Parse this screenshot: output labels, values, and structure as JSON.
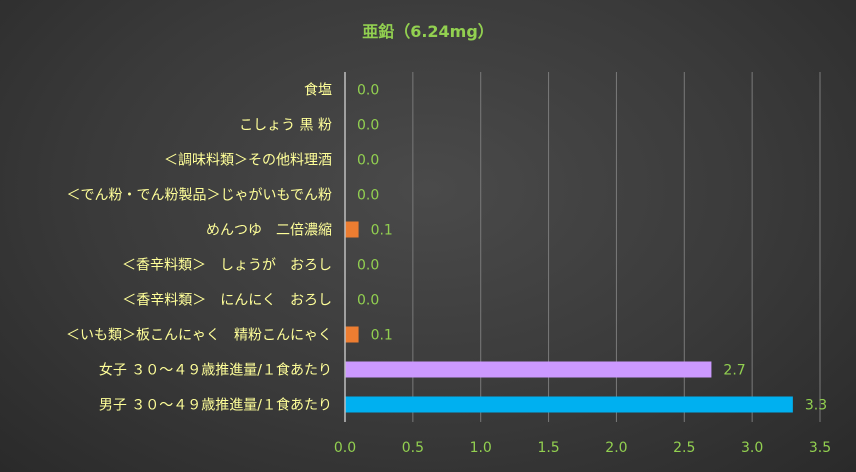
{
  "chart_data": {
    "type": "bar",
    "orientation": "horizontal",
    "title": "亜鉛（6.24mg）",
    "categories": [
      "食塩",
      "こしょう 黒 粉",
      "＜調味料類＞その他料理酒",
      "＜でん粉・でん粉製品＞じゃがいもでん粉",
      "めんつゆ　二倍濃縮",
      "＜香辛料類＞　しょうが　おろし",
      "＜香辛料類＞　にんにく　おろし",
      "＜いも類＞板こんにゃく　精粉こんにゃく",
      "女子 ３０～４９歳推進量/１食あたり",
      "男子 ３０～４９歳推進量/１食あたり"
    ],
    "values": [
      0.0,
      0.0,
      0.0,
      0.0,
      0.1,
      0.0,
      0.0,
      0.1,
      2.7,
      3.3
    ],
    "value_labels": [
      "0.0",
      "0.0",
      "0.0",
      "0.0",
      "0.1",
      "0.0",
      "0.0",
      "0.1",
      "2.7",
      "3.3"
    ],
    "bar_colors": [
      "#ed7d31",
      "#ed7d31",
      "#ed7d31",
      "#ed7d31",
      "#ed7d31",
      "#ed7d31",
      "#ed7d31",
      "#ed7d31",
      "#cc99ff",
      "#00b0f0"
    ],
    "xlim": [
      0,
      3.5
    ],
    "xticks": [
      "0.0",
      "0.5",
      "1.0",
      "1.5",
      "2.0",
      "2.5",
      "3.0",
      "3.5"
    ],
    "xtick_values": [
      0,
      0.5,
      1.0,
      1.5,
      2.0,
      2.5,
      3.0,
      3.5
    ],
    "grid": true,
    "colors": {
      "title": "#92d050",
      "category_labels": "#ffff99",
      "values": "#92d050",
      "ticks": "#92d050"
    }
  }
}
